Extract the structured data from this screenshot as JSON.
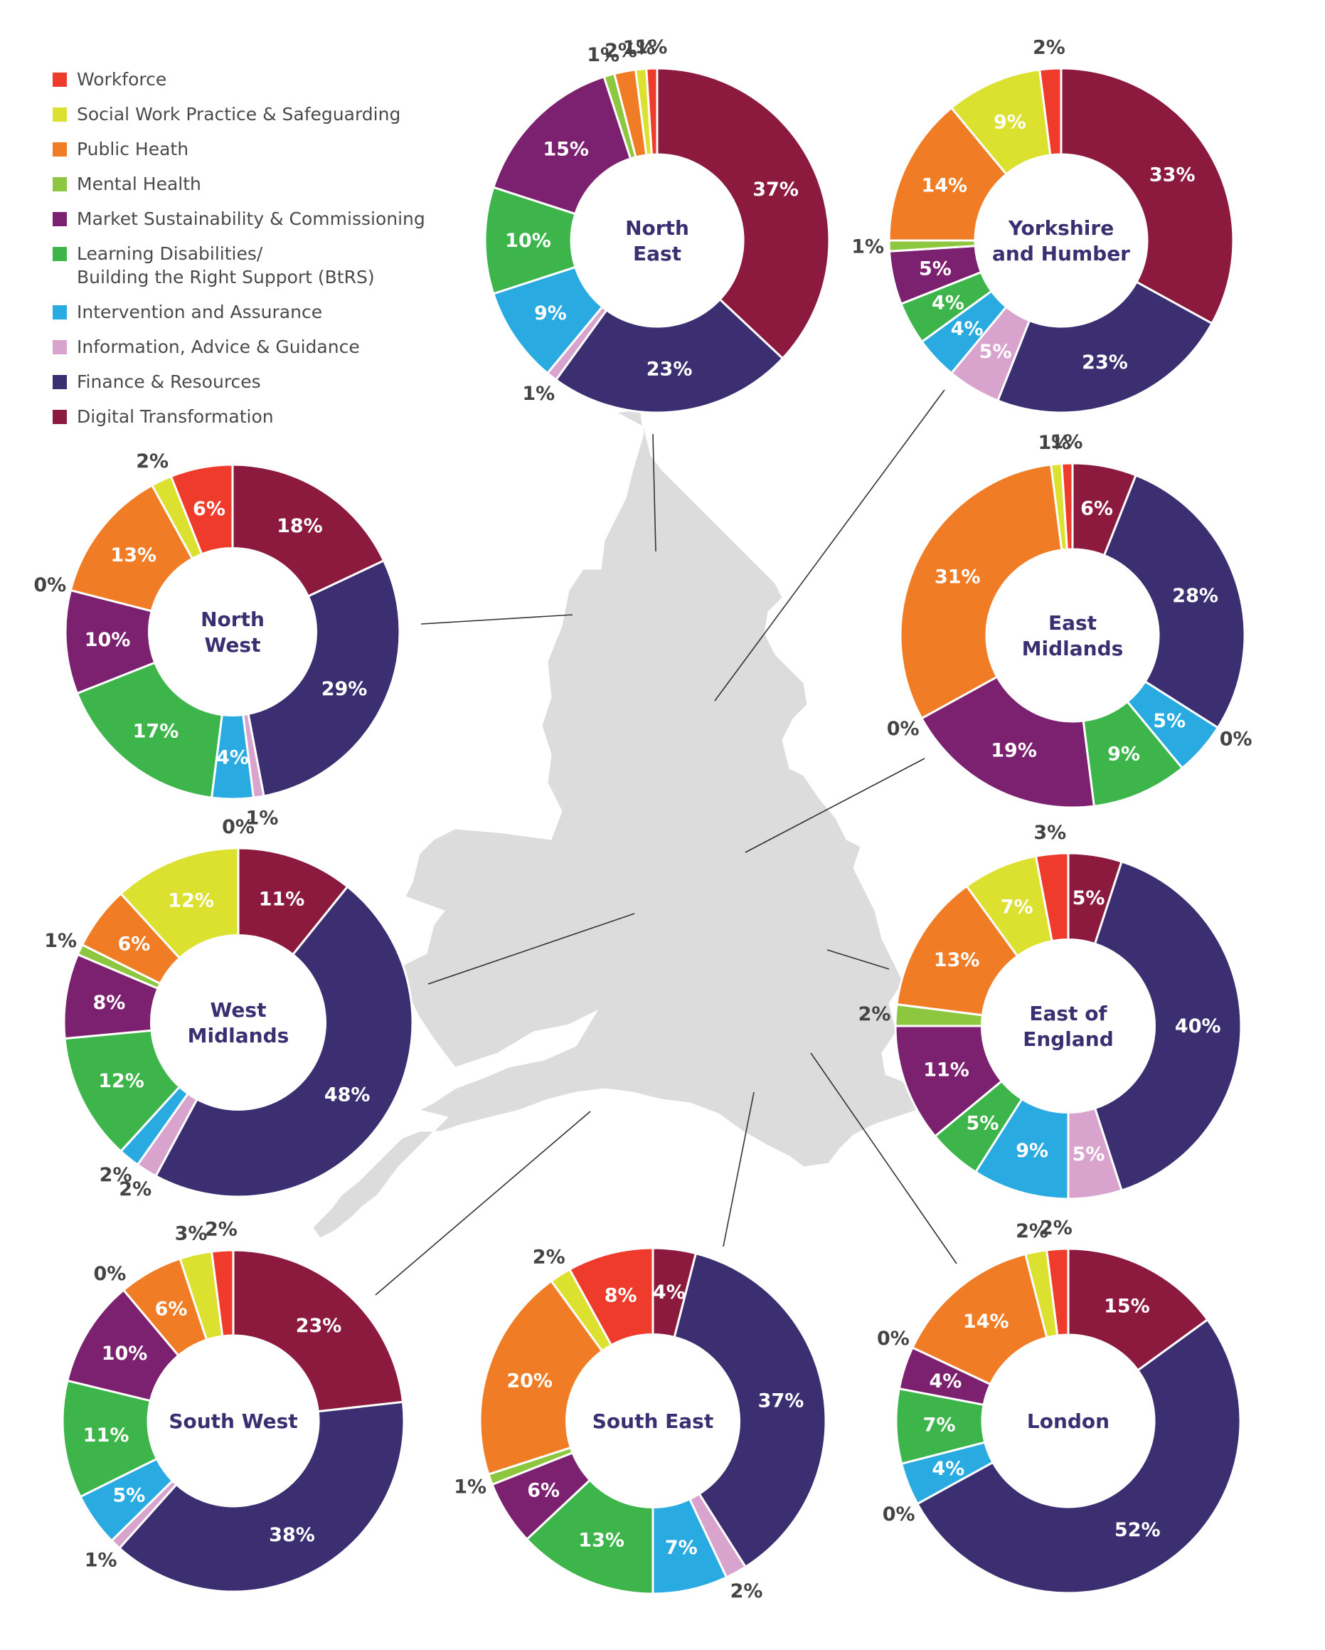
{
  "legend": [
    {
      "label": "Workforce",
      "color": "#EF3B2C"
    },
    {
      "label": "Social Work Practice & Safeguarding",
      "color": "#DCE02E"
    },
    {
      "label": "Public Heath",
      "color": "#F07C26"
    },
    {
      "label": "Mental Health",
      "color": "#8DC63F"
    },
    {
      "label": "Market Sustainability & Commissioning",
      "color": "#7B2170"
    },
    {
      "label": "Learning Disabilities/\nBuilding the Right Support (BtRS)",
      "color": "#3DB54A"
    },
    {
      "label": "Intervention and Assurance",
      "color": "#29ABE2"
    },
    {
      "label": "Information, Advice & Guidance",
      "color": "#D8A4CE"
    },
    {
      "label": "Finance & Resources",
      "color": "#3B2F72"
    },
    {
      "label": "Digital Transformation",
      "color": "#8B1A3E"
    }
  ],
  "map": {
    "fill": "#DCDCDC",
    "stroke": "#ffffff"
  },
  "chart_data": [
    {
      "type": "pie",
      "region": "North East",
      "label_lines": [
        "North",
        "East"
      ],
      "labels": [
        "Digital Transformation",
        "Finance & Resources",
        "Information, Advice & Guidance",
        "Intervention and Assurance",
        "Learning Disabilities/Building the Right Support (BtRS)",
        "Market Sustainability & Commissioning",
        "Mental Health",
        "Public Heath",
        "Social Work Practice & Safeguarding",
        "Workforce"
      ],
      "values": [
        37,
        23,
        1,
        9,
        10,
        15,
        1,
        2,
        1,
        1
      ],
      "value_labels": [
        "37%",
        "23%",
        "1%",
        "9%",
        "10%",
        "15%",
        "1%",
        "2%",
        "1%",
        "1%"
      ]
    },
    {
      "type": "pie",
      "region": "Yorkshire and Humber",
      "label_lines": [
        "Yorkshire",
        "and Humber"
      ],
      "labels": [
        "Digital Transformation",
        "Finance & Resources",
        "Information, Advice & Guidance",
        "Intervention and Assurance",
        "Learning Disabilities/Building the Right Support (BtRS)",
        "Market Sustainability & Commissioning",
        "Mental Health",
        "Public Heath",
        "Social Work Practice & Safeguarding",
        "Workforce"
      ],
      "values": [
        33,
        23,
        5,
        4,
        4,
        5,
        1,
        14,
        9,
        2
      ],
      "value_labels": [
        "33%",
        "23%",
        "5%",
        "4%",
        "4%",
        "5%",
        "1%",
        "14%",
        "9%",
        "2%"
      ]
    },
    {
      "type": "pie",
      "region": "North West",
      "label_lines": [
        "North",
        "West"
      ],
      "labels": [
        "Digital Transformation",
        "Finance & Resources",
        "Information, Advice & Guidance",
        "Intervention and Assurance",
        "Learning Disabilities/Building the Right Support (BtRS)",
        "Market Sustainability & Commissioning",
        "Mental Health",
        "Public Heath",
        "Social Work Practice & Safeguarding",
        "Workforce"
      ],
      "values": [
        18,
        29,
        1,
        4,
        17,
        10,
        0,
        13,
        2,
        6
      ],
      "value_labels": [
        "18%",
        "29%",
        "1%",
        "4%",
        "17%",
        "10%",
        "0%",
        "13%",
        "2%",
        "6%"
      ]
    },
    {
      "type": "pie",
      "region": "East Midlands",
      "label_lines": [
        "East",
        "Midlands"
      ],
      "labels": [
        "Digital Transformation",
        "Finance & Resources",
        "Information, Advice & Guidance",
        "Intervention and Assurance",
        "Learning Disabilities/Building the Right Support (BtRS)",
        "Market Sustainability & Commissioning",
        "Mental Health",
        "Public Heath",
        "Social Work Practice & Safeguarding",
        "Workforce"
      ],
      "values": [
        6,
        28,
        0,
        5,
        9,
        19,
        0,
        31,
        1,
        1
      ],
      "value_labels": [
        "6%",
        "28%",
        "0%",
        "5%",
        "9%",
        "19%",
        "0%",
        "31%",
        "1%",
        "1%"
      ]
    },
    {
      "type": "pie",
      "region": "West Midlands",
      "label_lines": [
        "West",
        "Midlands"
      ],
      "labels": [
        "Digital Transformation",
        "Finance & Resources",
        "Information, Advice & Guidance",
        "Intervention and Assurance",
        "Learning Disabilities/Building the Right Support (BtRS)",
        "Market Sustainability & Commissioning",
        "Mental Health",
        "Public Heath",
        "Social Work Practice & Safeguarding",
        "Workforce"
      ],
      "values": [
        11,
        48,
        2,
        2,
        12,
        8,
        1,
        6,
        12,
        0
      ],
      "value_labels": [
        "11%",
        "48%",
        "2%",
        "2%",
        "12%",
        "8%",
        "1%",
        "6%",
        "12%",
        "0%"
      ]
    },
    {
      "type": "pie",
      "region": "East of England",
      "label_lines": [
        "East of",
        "England"
      ],
      "labels": [
        "Digital Transformation",
        "Finance & Resources",
        "Information, Advice & Guidance",
        "Intervention and Assurance",
        "Learning Disabilities/Building the Right Support (BtRS)",
        "Market Sustainability & Commissioning",
        "Mental Health",
        "Public Heath",
        "Social Work Practice & Safeguarding",
        "Workforce"
      ],
      "values": [
        5,
        40,
        5,
        9,
        5,
        11,
        2,
        13,
        7,
        3
      ],
      "value_labels": [
        "5%",
        "40%",
        "5%",
        "9%",
        "5%",
        "11%",
        "2%",
        "13%",
        "7%",
        "3%"
      ]
    },
    {
      "type": "pie",
      "region": "South West",
      "label_lines": [
        "South West"
      ],
      "labels": [
        "Digital Transformation",
        "Finance & Resources",
        "Information, Advice & Guidance",
        "Intervention and Assurance",
        "Learning Disabilities/Building the Right Support (BtRS)",
        "Market Sustainability & Commissioning",
        "Mental Health",
        "Public Heath",
        "Social Work Practice & Safeguarding",
        "Workforce"
      ],
      "values": [
        23,
        38,
        1,
        5,
        11,
        10,
        0,
        6,
        3,
        2
      ],
      "value_labels": [
        "23%",
        "38%",
        "1%",
        "5%",
        "11%",
        "10%",
        "0%",
        "6%",
        "3%",
        "2%"
      ]
    },
    {
      "type": "pie",
      "region": "South East",
      "label_lines": [
        "South East"
      ],
      "labels": [
        "Digital Transformation",
        "Finance & Resources",
        "Information, Advice & Guidance",
        "Intervention and Assurance",
        "Learning Disabilities/Building the Right Support (BtRS)",
        "Market Sustainability & Commissioning",
        "Mental Health",
        "Public Heath",
        "Social Work Practice & Safeguarding",
        "Workforce"
      ],
      "values": [
        4,
        37,
        2,
        7,
        13,
        6,
        1,
        20,
        2,
        8
      ],
      "value_labels": [
        "4%",
        "37%",
        "2%",
        "7%",
        "13%",
        "6%",
        "1%",
        "20%",
        "2%",
        "8%"
      ]
    },
    {
      "type": "pie",
      "region": "London",
      "label_lines": [
        "London"
      ],
      "labels": [
        "Digital Transformation",
        "Finance & Resources",
        "Information, Advice & Guidance",
        "Intervention and Assurance",
        "Learning Disabilities/Building the Right Support (BtRS)",
        "Market Sustainability & Commissioning",
        "Mental Health",
        "Public Heath",
        "Social Work Practice & Safeguarding",
        "Workforce"
      ],
      "values": [
        15,
        52,
        0,
        4,
        7,
        4,
        0,
        14,
        2,
        2
      ],
      "value_labels": [
        "15%",
        "52%",
        "0%",
        "4%",
        "7%",
        "4%",
        "0%",
        "14%",
        "2%",
        "2%"
      ]
    }
  ]
}
